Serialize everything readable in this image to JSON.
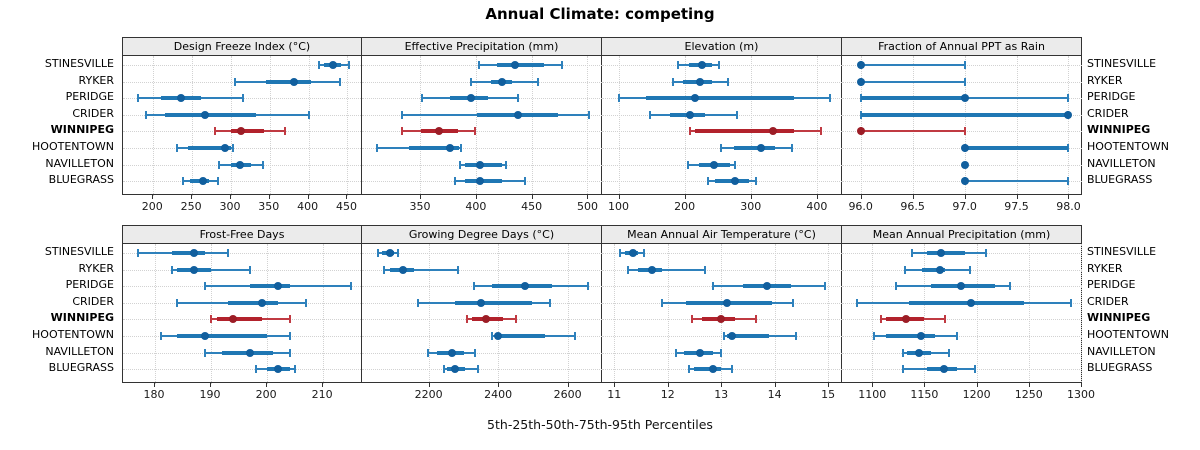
{
  "figure": {
    "title": "Annual Climate: competing",
    "caption": "5th-25th-50th-75th-95th Percentiles"
  },
  "locations": [
    "STINESVILLE",
    "RYKER",
    "PERIDGE",
    "CRIDER",
    "WINNIPEG",
    "HOOTENTOWN",
    "NAVILLETON",
    "BLUEGRASS"
  ],
  "highlight": "WINNIPEG",
  "colors": {
    "blue_whisker": "#2e81bc",
    "blue_box": "#1f77b4",
    "blue_dot": "#115f9e",
    "red_whisker": "#c03a42",
    "red_box": "#b2222c",
    "red_dot": "#9c1d26",
    "grid": "#d2d2d2",
    "border": "#333333",
    "strip_bg": "#ebebeb"
  },
  "chart_data": {
    "type": "dot-interval-trellis",
    "percentile_labels": [
      "5th",
      "25th",
      "50th",
      "75th",
      "95th"
    ],
    "legend_position": "none",
    "grid": "dotted",
    "panels": [
      {
        "title": "Design Freeze Index (°C)",
        "row": 0,
        "col": 0,
        "xlim": [
          161,
          470
        ],
        "ticks": [
          "200",
          "250",
          "300",
          "350",
          "400",
          "450"
        ],
        "series": [
          {
            "loc": "STINESVILLE",
            "q": [
              413,
              420,
              432,
              442,
              452
            ]
          },
          {
            "loc": "RYKER",
            "q": [
              305,
              345,
              381,
              403,
              440
            ]
          },
          {
            "loc": "PERIDGE",
            "q": [
              180,
              210,
              236,
              262,
              315
            ]
          },
          {
            "loc": "CRIDER",
            "q": [
              191,
              215,
              266,
              332,
              401
            ]
          },
          {
            "loc": "WINNIPEG",
            "q": [
              280,
              300,
              313,
              343,
              369
            ]
          },
          {
            "loc": "HOOTENTOWN",
            "q": [
              230,
              245,
              292,
              300,
              303
            ]
          },
          {
            "loc": "NAVILLETON",
            "q": [
              285,
              300,
              311,
              326,
              341
            ]
          },
          {
            "loc": "BLUEGRASS",
            "q": [
              238,
              247,
              264,
              272,
              283
            ]
          }
        ]
      },
      {
        "title": "Effective Precipitation (mm)",
        "row": 0,
        "col": 1,
        "xlim": [
          298,
          513
        ],
        "ticks": [
          "350",
          "400",
          "450",
          "500"
        ],
        "series": [
          {
            "loc": "STINESVILLE",
            "q": [
              403,
              419,
              435,
              461,
              477
            ]
          },
          {
            "loc": "RYKER",
            "q": [
              396,
              414,
              423,
              432,
              456
            ]
          },
          {
            "loc": "PERIDGE",
            "q": [
              352,
              377,
              396,
              411,
              438
            ]
          },
          {
            "loc": "CRIDER",
            "q": [
              334,
              401,
              438,
              474,
              501
            ]
          },
          {
            "loc": "WINNIPEG",
            "q": [
              334,
              351,
              367,
              384,
              399
            ]
          },
          {
            "loc": "HOOTENTOWN",
            "q": [
              311,
              340,
              377,
              385,
              387
            ]
          },
          {
            "loc": "NAVILLETON",
            "q": [
              386,
              390,
              404,
              423,
              427
            ]
          },
          {
            "loc": "BLUEGRASS",
            "q": [
              381,
              390,
              404,
              423,
              444
            ]
          }
        ]
      },
      {
        "title": "Elevation (m)",
        "row": 0,
        "col": 2,
        "xlim": [
          75,
          438
        ],
        "ticks": [
          "100",
          "200",
          "300",
          "400"
        ],
        "series": [
          {
            "loc": "STINESVILLE",
            "q": [
              190,
              207,
              226,
              241,
              252
            ]
          },
          {
            "loc": "RYKER",
            "q": [
              183,
              198,
              223,
              241,
              265
            ]
          },
          {
            "loc": "PERIDGE",
            "q": [
              100,
              141,
              215,
              366,
              420
            ]
          },
          {
            "loc": "CRIDER",
            "q": [
              148,
              178,
              208,
              231,
              279
            ]
          },
          {
            "loc": "WINNIPEG",
            "q": [
              208,
              215,
              334,
              366,
              406
            ]
          },
          {
            "loc": "HOOTENTOWN",
            "q": [
              255,
              275,
              315,
              337,
              362
            ]
          },
          {
            "loc": "NAVILLETON",
            "q": [
              205,
              221,
              244,
              269,
              276
            ]
          },
          {
            "loc": "BLUEGRASS",
            "q": [
              235,
              246,
              276,
              297,
              308
            ]
          }
        ]
      },
      {
        "title": "Fraction of Annual PPT as Rain",
        "row": 0,
        "col": 3,
        "xlim": [
          95.82,
          98.13
        ],
        "ticks": [
          "96.0",
          "96.5",
          "97.0",
          "97.5",
          "98.0"
        ],
        "series": [
          {
            "loc": "STINESVILLE",
            "q": [
              96,
              96,
              96,
              96,
              97
            ]
          },
          {
            "loc": "RYKER",
            "q": [
              96,
              96,
              96,
              96,
              97
            ]
          },
          {
            "loc": "PERIDGE",
            "q": [
              96,
              96,
              97,
              97,
              98
            ]
          },
          {
            "loc": "CRIDER",
            "q": [
              96,
              96,
              98,
              98,
              98
            ]
          },
          {
            "loc": "WINNIPEG",
            "q": [
              96,
              96,
              96,
              96,
              97
            ]
          },
          {
            "loc": "HOOTENTOWN",
            "q": [
              97,
              97,
              97,
              98,
              98
            ]
          },
          {
            "loc": "NAVILLETON",
            "q": [
              97,
              97,
              97,
              97,
              97
            ]
          },
          {
            "loc": "BLUEGRASS",
            "q": [
              97,
              97,
              97,
              97,
              98
            ]
          }
        ]
      },
      {
        "title": "Frost-Free Days",
        "row": 1,
        "col": 0,
        "xlim": [
          174.3,
          217.1
        ],
        "ticks": [
          "180",
          "190",
          "200",
          "210"
        ],
        "series": [
          {
            "loc": "STINESVILLE",
            "q": [
              177,
              183,
              187,
              189,
              193
            ]
          },
          {
            "loc": "RYKER",
            "q": [
              183,
              184,
              187,
              190,
              197
            ]
          },
          {
            "loc": "PERIDGE",
            "q": [
              189,
              197,
              202,
              204,
              215
            ]
          },
          {
            "loc": "CRIDER",
            "q": [
              184,
              193,
              199,
              202,
              207
            ]
          },
          {
            "loc": "WINNIPEG",
            "q": [
              190,
              191,
              194,
              199,
              204
            ]
          },
          {
            "loc": "HOOTENTOWN",
            "q": [
              181,
              184,
              189,
              200,
              204
            ]
          },
          {
            "loc": "NAVILLETON",
            "q": [
              189,
              192,
              197,
              201,
              204
            ]
          },
          {
            "loc": "BLUEGRASS",
            "q": [
              198,
              200,
              202,
              204,
              205
            ]
          }
        ]
      },
      {
        "title": "Growing Degree Days (°C)",
        "row": 1,
        "col": 1,
        "xlim": [
          2008,
          2699
        ],
        "ticks": [
          "2200",
          "2400",
          "2600"
        ],
        "series": [
          {
            "loc": "STINESVILLE",
            "q": [
              2055,
              2065,
              2090,
              2100,
              2112
            ]
          },
          {
            "loc": "RYKER",
            "q": [
              2070,
              2090,
              2125,
              2157,
              2285
            ]
          },
          {
            "loc": "PERIDGE",
            "q": [
              2330,
              2382,
              2476,
              2555,
              2660
            ]
          },
          {
            "loc": "CRIDER",
            "q": [
              2170,
              2277,
              2350,
              2497,
              2548
            ]
          },
          {
            "loc": "WINNIPEG",
            "q": [
              2310,
              2325,
              2365,
              2415,
              2450
            ]
          },
          {
            "loc": "HOOTENTOWN",
            "q": [
              2382,
              2390,
              2400,
              2535,
              2620
            ]
          },
          {
            "loc": "NAVILLETON",
            "q": [
              2197,
              2224,
              2267,
              2301,
              2334
            ]
          },
          {
            "loc": "BLUEGRASS",
            "q": [
              2243,
              2253,
              2277,
              2305,
              2342
            ]
          }
        ]
      },
      {
        "title": "Mean Annual Air Temperature (°C)",
        "row": 1,
        "col": 2,
        "xlim": [
          10.77,
          15.26
        ],
        "ticks": [
          "11",
          "12",
          "13",
          "14",
          "15"
        ],
        "series": [
          {
            "loc": "STINESVILLE",
            "q": [
              11.1,
              11.2,
              11.35,
              11.45,
              11.55
            ]
          },
          {
            "loc": "RYKER",
            "q": [
              11.25,
              11.45,
              11.7,
              11.9,
              12.7
            ]
          },
          {
            "loc": "PERIDGE",
            "q": [
              12.85,
              13.4,
              13.85,
              14.3,
              14.95
            ]
          },
          {
            "loc": "CRIDER",
            "q": [
              11.9,
              12.35,
              13.1,
              13.95,
              14.35
            ]
          },
          {
            "loc": "WINNIPEG",
            "q": [
              12.45,
              12.65,
              13.0,
              13.25,
              13.65
            ]
          },
          {
            "loc": "HOOTENTOWN",
            "q": [
              13.05,
              13.1,
              13.2,
              13.9,
              14.4
            ]
          },
          {
            "loc": "NAVILLETON",
            "q": [
              12.15,
              12.3,
              12.6,
              12.85,
              13.0
            ]
          },
          {
            "loc": "BLUEGRASS",
            "q": [
              12.4,
              12.5,
              12.85,
              13.0,
              13.2
            ]
          }
        ]
      },
      {
        "title": "Mean Annual Precipitation (mm)",
        "row": 1,
        "col": 3,
        "xlim": [
          1071,
          1301
        ],
        "ticks": [
          "1100",
          "1150",
          "1200",
          "1250",
          "1300"
        ],
        "series": [
          {
            "loc": "STINESVILLE",
            "q": [
              1138,
              1152,
              1166,
              1189,
              1209
            ]
          },
          {
            "loc": "RYKER",
            "q": [
              1131,
              1148,
              1165,
              1170,
              1194
            ]
          },
          {
            "loc": "PERIDGE",
            "q": [
              1123,
              1156,
              1185,
              1218,
              1232
            ]
          },
          {
            "loc": "CRIDER",
            "q": [
              1085,
              1135,
              1195,
              1245,
              1290
            ]
          },
          {
            "loc": "WINNIPEG",
            "q": [
              1108,
              1113,
              1132,
              1150,
              1170
            ]
          },
          {
            "loc": "HOOTENTOWN",
            "q": [
              1102,
              1113,
              1147,
              1160,
              1181
            ]
          },
          {
            "loc": "NAVILLETON",
            "q": [
              1129,
              1133,
              1145,
              1156,
              1174
            ]
          },
          {
            "loc": "BLUEGRASS",
            "q": [
              1129,
              1152,
              1169,
              1181,
              1198
            ]
          }
        ]
      }
    ]
  }
}
